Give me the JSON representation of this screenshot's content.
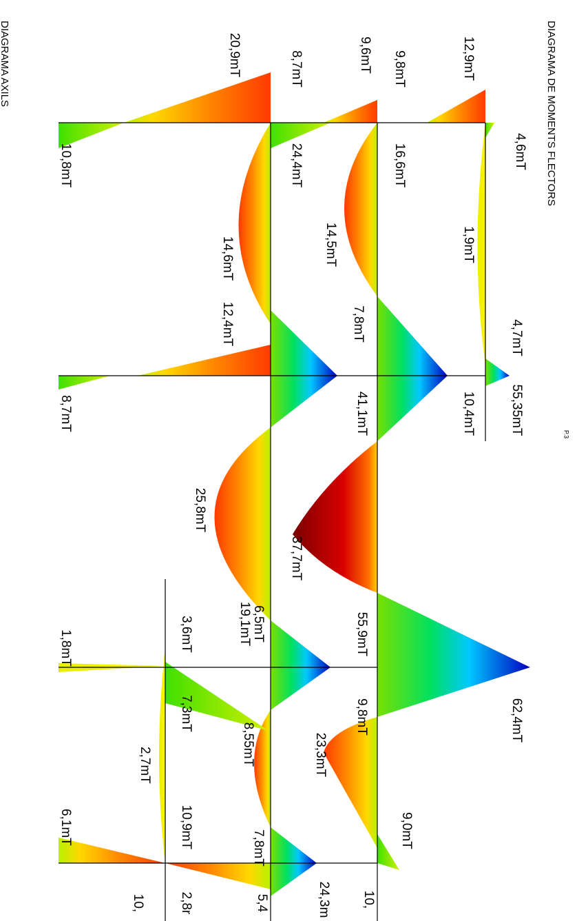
{
  "title": "DIAGRAMA DE MOMENTS FLECTORS",
  "subtitle": "DIAGRAMA AXILS",
  "page_ref": "P.3",
  "labels": [
    "12,9mT",
    "4,6mT",
    "1,9mT",
    "4,7mT",
    "55,35mT",
    "10,4mT",
    "62,4mT",
    "9,0mT",
    "10,",
    "9,6mT",
    "9,8mT",
    "16,6mT",
    "14,5mT",
    "7,8mT",
    "41,1mT",
    "37,7mT",
    "55,9mT",
    "9,8mT",
    "23,3mT",
    "24,3m",
    "8,7mT",
    "24,4mT",
    "20,9mT",
    "14,6mT",
    "12,4mT",
    "25,8mT",
    "6,5mT",
    "19,1mT",
    "8,55mT",
    "7,8mT",
    "5,4",
    "3,6mT",
    "7,3mT",
    "2,7mT",
    "10,9mT",
    "2,8r",
    "10,8mT",
    "8,7mT",
    "1,8mT",
    "6,1mT",
    "10,"
  ]
}
